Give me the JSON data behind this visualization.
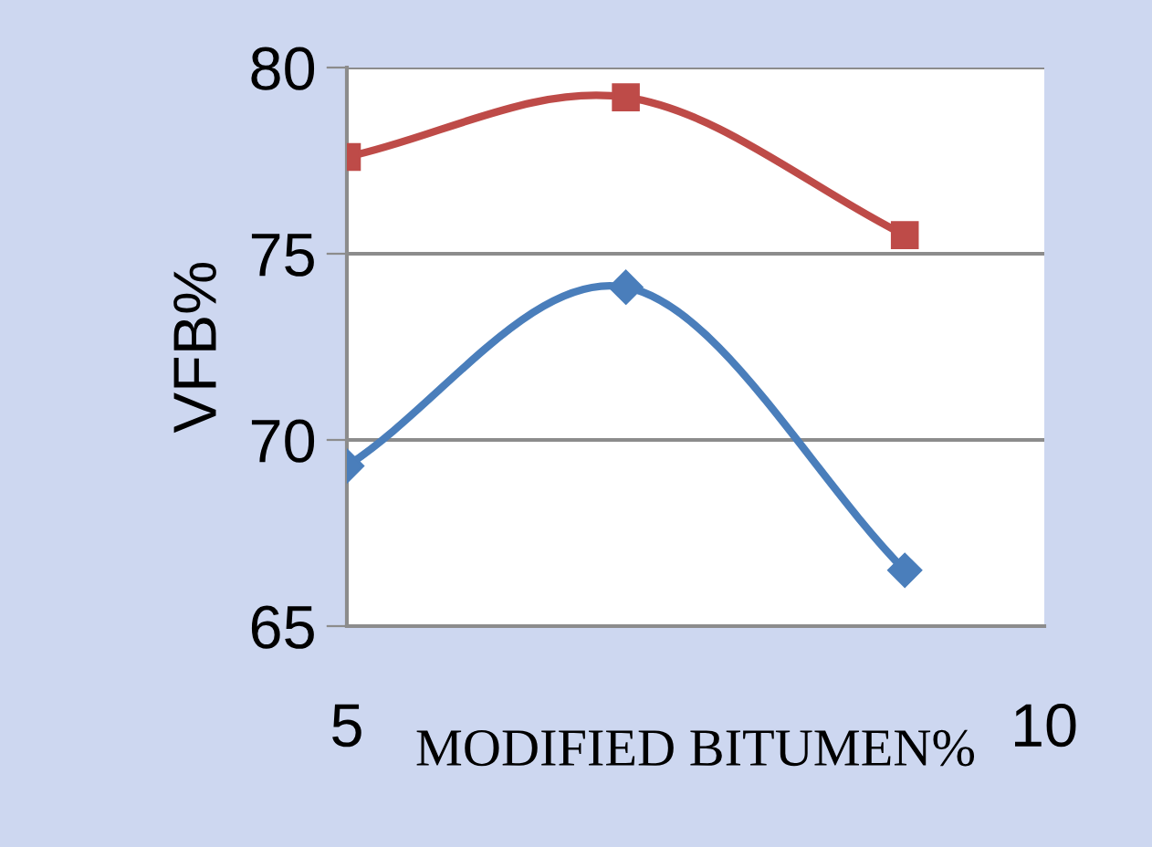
{
  "chart_data": {
    "type": "line",
    "xlabel": "MODIFIED BITUMEN%",
    "ylabel": "VFB%",
    "x": [
      5,
      7,
      9
    ],
    "series": [
      {
        "color": "#4a7ebb",
        "values": [
          69.3,
          74.1,
          66.5
        ],
        "marker": "diamond"
      },
      {
        "color": "#be4b48",
        "values": [
          77.6,
          79.2,
          75.5
        ],
        "marker": "square"
      }
    ],
    "xlim": [
      5,
      10
    ],
    "xticks": [
      5,
      10
    ],
    "ylim": [
      65,
      80
    ],
    "yticks": [
      65,
      70,
      75,
      80
    ],
    "grid": "y",
    "legend": false,
    "line_style": "solid"
  }
}
